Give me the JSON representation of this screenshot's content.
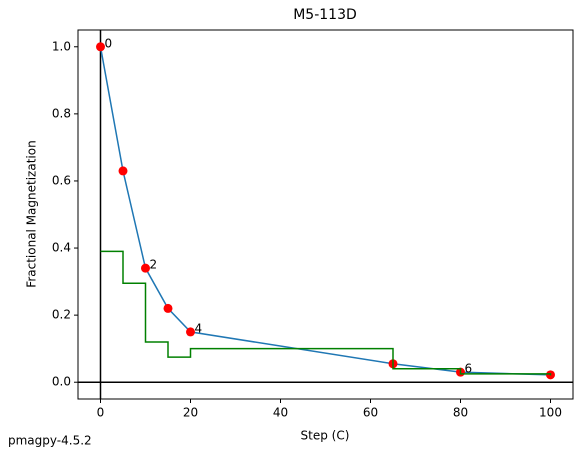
{
  "chart_data": {
    "type": "line",
    "title": "M5-113D",
    "xlabel": "Step (C)",
    "ylabel": "Fractional Magnetization",
    "footer": "pmagpy-4.5.2",
    "xlim": [
      -5,
      105
    ],
    "ylim": [
      -0.05,
      1.05
    ],
    "xticks": [
      0,
      20,
      40,
      60,
      80,
      100
    ],
    "yticks": [
      {
        "value": 0,
        "label": "0.0"
      },
      {
        "value": 0.2,
        "label": "0.2"
      },
      {
        "value": 0.4,
        "label": "0.4"
      },
      {
        "value": 0.6,
        "label": "0.6"
      },
      {
        "value": 0.8,
        "label": "0.8"
      },
      {
        "value": 1,
        "label": "1.0"
      }
    ],
    "x": [
      0,
      5,
      10,
      15,
      20,
      65,
      80,
      100
    ],
    "series": [
      {
        "color": "#1f77b4",
        "marker_color": "#ff0000",
        "values": [
          1.0,
          0.63,
          0.34,
          0.22,
          0.15,
          0.055,
          0.03,
          0.022
        ],
        "point_labels": [
          "0",
          null,
          "2",
          null,
          "4",
          null,
          "6",
          null
        ]
      },
      {
        "color": "#008000",
        "step": true,
        "values": [
          0.39,
          0.295,
          0.12,
          0.075,
          0.1,
          0.04,
          0.025,
          0.02
        ]
      }
    ]
  }
}
